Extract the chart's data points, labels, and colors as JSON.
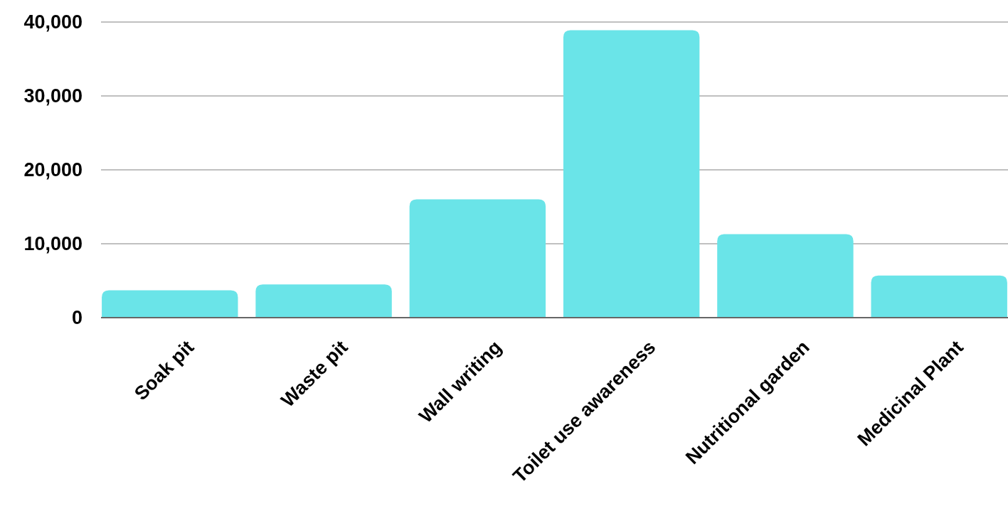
{
  "chart_data": {
    "type": "bar",
    "categories": [
      "Soak pit",
      "Waste pit",
      "Wall writing",
      "Toilet use awareness",
      "Nutritional garden",
      "Medicinal Plant"
    ],
    "values": [
      3700,
      4500,
      16000,
      38900,
      11300,
      5700
    ],
    "color": "#6ae4e8",
    "ylim": [
      0,
      40000
    ],
    "yticks": [
      {
        "value": 0,
        "label": "0"
      },
      {
        "value": 10000,
        "label": "10,000"
      },
      {
        "value": 20000,
        "label": "20,000"
      },
      {
        "value": 30000,
        "label": "30,000"
      },
      {
        "value": 40000,
        "label": "40,000"
      }
    ],
    "grid": "y"
  }
}
